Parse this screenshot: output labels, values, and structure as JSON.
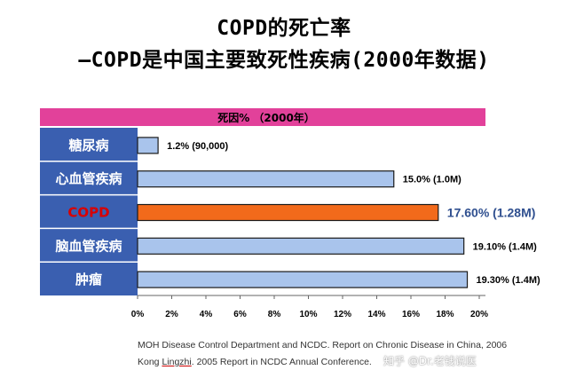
{
  "title_line1": "COPD的死亡率",
  "title_line2": "—COPD是中国主要致死性疾病(2000年数据)",
  "sources": {
    "line1": "MOH Disease Control Department and NCDC. Report on Chronic Disease in China, 2006",
    "line2_prefix": "Kong ",
    "line2_name": "Lingzhi",
    "line2_suffix": ". 2005 Report in NCDC Annual Conference."
  },
  "watermark": "知乎 @Dr.老钱说医",
  "colors": {
    "header_pink": "#e2419a",
    "category_blue": "#3a5fb0",
    "bar_blue": "#a9c4ec",
    "bar_highlight": "#f26a1b",
    "highlight_text": "#d90000",
    "highlight_label": "#2f4f8f"
  },
  "chart_data": {
    "type": "bar",
    "orientation": "horizontal",
    "header": "死因% （2000年）",
    "categories": [
      "糖尿病",
      "心血管疾病",
      "COPD",
      "脑血管疾病",
      "肿瘤"
    ],
    "values": [
      1.2,
      15.0,
      17.6,
      19.1,
      19.3
    ],
    "data_labels": [
      "1.2% (90,000)",
      "15.0% (1.0M)",
      "17.60% (1.28M)",
      "19.10% (1.4M)",
      "19.30% (1.4M)"
    ],
    "highlight_index": 2,
    "xlim": [
      0,
      20
    ],
    "x_ticks": [
      "0%",
      "2%",
      "4%",
      "6%",
      "8%",
      "10%",
      "12%",
      "14%",
      "16%",
      "18%",
      "20%"
    ],
    "grid": false
  }
}
